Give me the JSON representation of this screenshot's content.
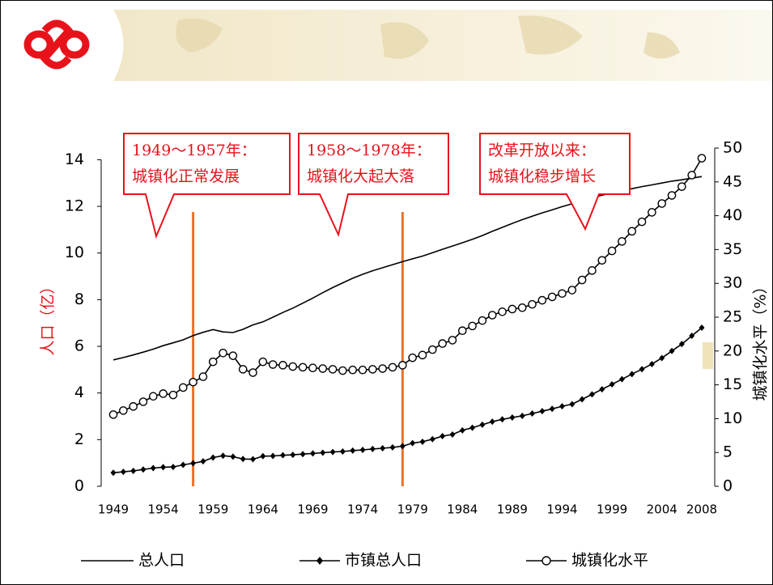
{
  "chart_data": {
    "type": "line",
    "y_label": "人口（亿）",
    "y2_label": "城镇化水平（%）",
    "x": [
      1949,
      1950,
      1951,
      1952,
      1953,
      1954,
      1955,
      1956,
      1957,
      1958,
      1959,
      1960,
      1961,
      1962,
      1963,
      1964,
      1965,
      1966,
      1967,
      1968,
      1969,
      1970,
      1971,
      1972,
      1973,
      1974,
      1975,
      1976,
      1977,
      1978,
      1979,
      1980,
      1981,
      1982,
      1983,
      1984,
      1985,
      1986,
      1987,
      1988,
      1989,
      1990,
      1991,
      1992,
      1993,
      1994,
      1995,
      1996,
      1997,
      1998,
      1999,
      2000,
      2001,
      2002,
      2003,
      2004,
      2005,
      2006,
      2007,
      2008
    ],
    "xlim": [
      1949,
      2008
    ],
    "xticks": [
      1949,
      1954,
      1959,
      1964,
      1969,
      1974,
      1979,
      1984,
      1989,
      1994,
      1999,
      2004,
      2008
    ],
    "ylim": [
      0,
      14.5
    ],
    "yticks": [
      0,
      2,
      4,
      6,
      8,
      10,
      12,
      14
    ],
    "y2lim": [
      0,
      50
    ],
    "y2ticks": [
      0,
      5,
      10,
      15,
      20,
      25,
      30,
      35,
      40,
      45,
      50
    ],
    "series": [
      {
        "name": "总人口",
        "color": "#000000",
        "marker": "none",
        "values": [
          5.42,
          5.52,
          5.63,
          5.75,
          5.88,
          6.03,
          6.15,
          6.28,
          6.46,
          6.6,
          6.72,
          6.62,
          6.59,
          6.73,
          6.92,
          7.05,
          7.25,
          7.45,
          7.64,
          7.85,
          8.07,
          8.3,
          8.52,
          8.72,
          8.92,
          9.09,
          9.24,
          9.37,
          9.5,
          9.63,
          9.75,
          9.87,
          10.01,
          10.16,
          10.3,
          10.44,
          10.59,
          10.75,
          10.93,
          11.1,
          11.27,
          11.43,
          11.58,
          11.72,
          11.85,
          11.99,
          12.11,
          12.24,
          12.36,
          12.48,
          12.58,
          12.67,
          12.76,
          12.85,
          12.92,
          13.0,
          13.08,
          13.14,
          13.21,
          13.28
        ]
      },
      {
        "name": "市镇总人口",
        "color": "#000000",
        "marker": "diamond",
        "values": [
          0.58,
          0.62,
          0.66,
          0.72,
          0.78,
          0.82,
          0.83,
          0.92,
          0.99,
          1.07,
          1.23,
          1.31,
          1.27,
          1.17,
          1.16,
          1.29,
          1.3,
          1.33,
          1.35,
          1.38,
          1.41,
          1.44,
          1.47,
          1.49,
          1.53,
          1.56,
          1.6,
          1.63,
          1.67,
          1.72,
          1.85,
          1.91,
          2.02,
          2.15,
          2.22,
          2.4,
          2.51,
          2.64,
          2.77,
          2.87,
          2.95,
          3.02,
          3.12,
          3.22,
          3.32,
          3.43,
          3.52,
          3.73,
          3.94,
          4.16,
          4.37,
          4.59,
          4.81,
          5.02,
          5.24,
          5.5,
          5.8,
          6.1,
          6.45,
          6.8
        ]
      },
      {
        "name": "城镇化水平",
        "color": "#000000",
        "marker": "circle",
        "axis": "y2",
        "values": [
          10.6,
          11.2,
          11.8,
          12.5,
          13.3,
          13.7,
          13.5,
          14.6,
          15.4,
          16.2,
          18.4,
          19.7,
          19.3,
          17.3,
          16.8,
          18.4,
          18.0,
          17.9,
          17.7,
          17.6,
          17.5,
          17.4,
          17.3,
          17.1,
          17.2,
          17.2,
          17.3,
          17.4,
          17.6,
          17.9,
          19.0,
          19.4,
          20.2,
          21.1,
          21.6,
          23.0,
          23.7,
          24.5,
          25.3,
          25.8,
          26.2,
          26.4,
          26.9,
          27.5,
          28.0,
          28.5,
          29.0,
          30.5,
          31.9,
          33.4,
          34.8,
          36.2,
          37.7,
          39.1,
          40.5,
          41.8,
          43.0,
          44.3,
          46.0,
          48.5
        ]
      }
    ],
    "reference_lines": {
      "color": "#e8742a",
      "x": [
        1957,
        1978
      ]
    },
    "annotations": [
      [
        "1949～1957年：",
        "城镇化正常发展"
      ],
      [
        "1958～1978年：",
        "城镇化大起大落"
      ],
      [
        "改革开放以来：",
        "城镇化稳步增长"
      ]
    ]
  }
}
